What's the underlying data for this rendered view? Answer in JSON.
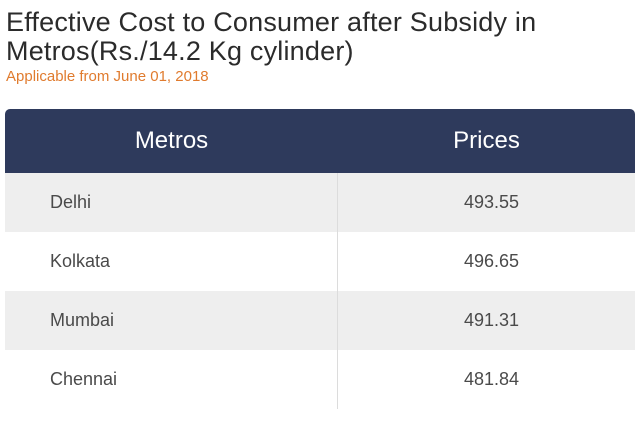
{
  "header": {
    "title": "Effective Cost to Consumer after Subsidy in Metros(Rs./14.2 Kg cylinder)",
    "subtitle": "Applicable from June 01, 2018"
  },
  "table": {
    "columns": [
      "Metros",
      "Prices"
    ],
    "rows": [
      {
        "metro": "Delhi",
        "price": "493.55"
      },
      {
        "metro": "Kolkata",
        "price": "496.65"
      },
      {
        "metro": "Mumbai",
        "price": "491.31"
      },
      {
        "metro": "Chennai",
        "price": "481.84"
      }
    ]
  },
  "colors": {
    "header_bg": "#2e3a5c",
    "subtitle": "#e07b2e",
    "row_shade": "#eeeeee"
  }
}
